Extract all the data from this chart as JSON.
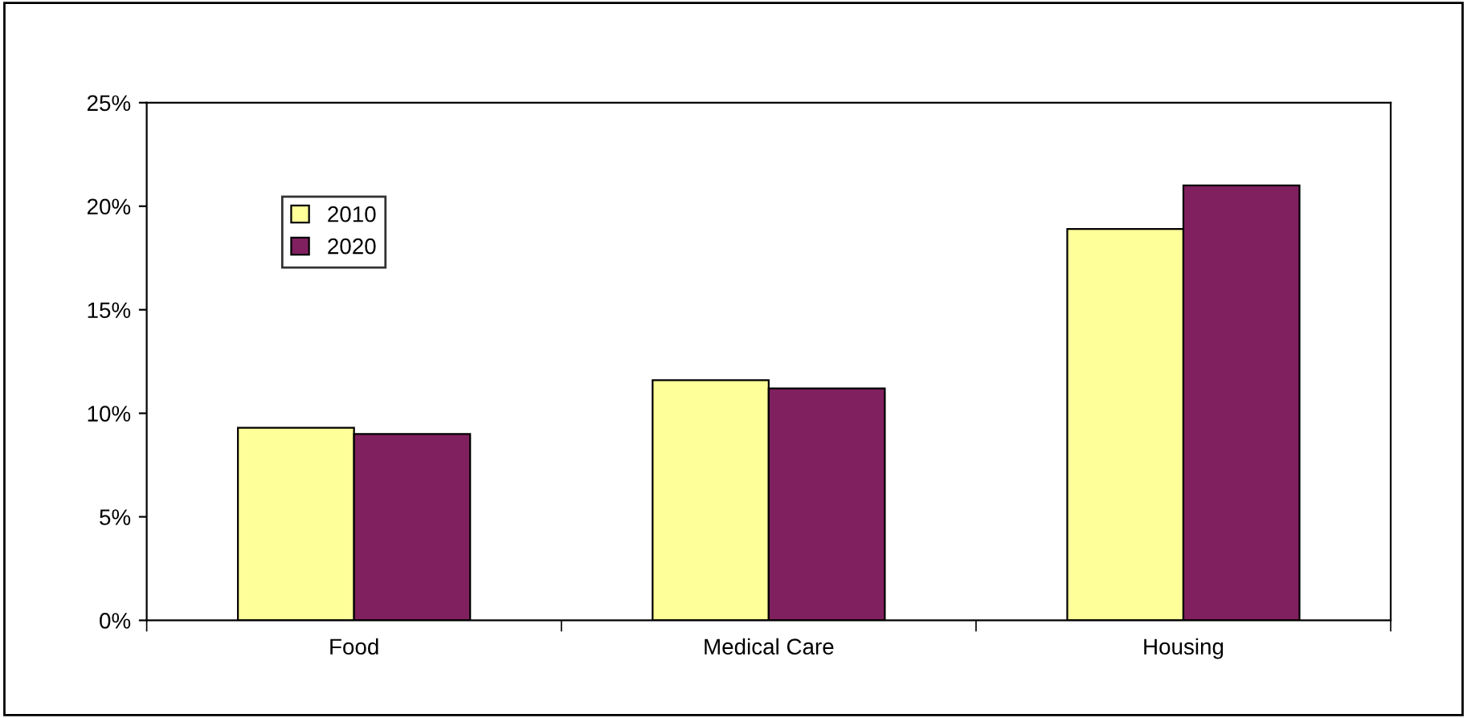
{
  "chart_data": {
    "type": "bar",
    "categories": [
      "Food",
      "Medical Care",
      "Housing"
    ],
    "series": [
      {
        "name": "2010",
        "color": "#ffff99",
        "values": [
          9.3,
          11.6,
          18.9
        ]
      },
      {
        "name": "2020",
        "color": "#80205f",
        "values": [
          9.0,
          11.2,
          21.0
        ]
      }
    ],
    "ylim": [
      0,
      25
    ],
    "yticks": [
      {
        "value": 0,
        "label": "0%"
      },
      {
        "value": 5,
        "label": "5%"
      },
      {
        "value": 10,
        "label": "10%"
      },
      {
        "value": 15,
        "label": "15%"
      },
      {
        "value": 20,
        "label": "20%"
      },
      {
        "value": 25,
        "label": "25%"
      }
    ],
    "grid": false,
    "legend": "top left"
  }
}
